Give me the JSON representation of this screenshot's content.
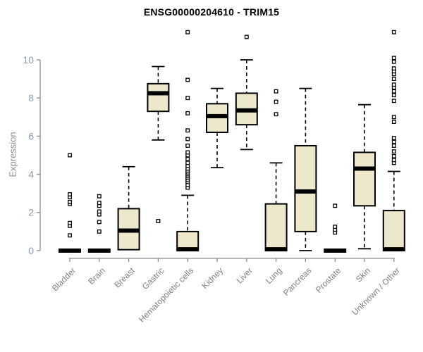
{
  "chart_data": {
    "type": "boxplot",
    "title": "ENSG00000204610 - TRIM15",
    "ylabel": "Expression",
    "xlabel": "",
    "yticks": [
      0,
      2,
      4,
      6,
      8,
      10
    ],
    "ylim": [
      0,
      11.8
    ],
    "grid": false,
    "legend": "none",
    "colors": {
      "box_fill": "#EDE7CC",
      "box_border": "#000000",
      "median": "#000000",
      "whisker": "#000000",
      "outlier_stroke": "#000000",
      "outlier_fill": "#ffffff",
      "axis": "#8a8a8a",
      "ytick_label": "#8b9bac",
      "xtick_label": "#808080",
      "ylabel_color": "#8e8e8e",
      "title_color": "#000000"
    },
    "categories": [
      "Bladder",
      "Brain",
      "Breast",
      "Gastric",
      "Hematopoietic cells",
      "Kidney",
      "Liver",
      "Lung",
      "Pancreas",
      "Prostate",
      "Skin",
      "Unknown / Other"
    ],
    "boxes": [
      {
        "category": "Bladder",
        "low": 0,
        "q1": 0,
        "median": 0,
        "q3": 0,
        "high": 0,
        "outliers": [
          0.8,
          1.3,
          1.45,
          2.45,
          2.55,
          2.8,
          2.95,
          5.0
        ]
      },
      {
        "category": "Brain",
        "low": 0,
        "q1": 0,
        "median": 0,
        "q3": 0,
        "high": 0,
        "outliers": [
          1.0,
          1.5,
          1.9,
          2.05,
          2.35,
          2.5,
          2.85
        ]
      },
      {
        "category": "Breast",
        "low": 0.05,
        "q1": 0.05,
        "median": 1.05,
        "q3": 2.2,
        "high": 4.4,
        "outliers": []
      },
      {
        "category": "Gastric",
        "low": 5.8,
        "q1": 7.3,
        "median": 8.25,
        "q3": 8.75,
        "high": 9.65,
        "outliers": [
          1.55
        ]
      },
      {
        "category": "Hematopoietic cells",
        "low": 0,
        "q1": 0,
        "median": 0.07,
        "q3": 1.0,
        "high": 2.9,
        "outliers": [
          3.3,
          3.45,
          3.6,
          3.7,
          3.8,
          3.9,
          4.0,
          4.1,
          4.2,
          4.3,
          4.45,
          4.6,
          4.8,
          5.0,
          5.15,
          5.5,
          5.85,
          6.3,
          7.2,
          8.0,
          8.95,
          11.45
        ]
      },
      {
        "category": "Kidney",
        "low": 4.35,
        "q1": 6.2,
        "median": 7.05,
        "q3": 7.7,
        "high": 8.5,
        "outliers": []
      },
      {
        "category": "Liver",
        "low": 5.3,
        "q1": 6.6,
        "median": 7.35,
        "q3": 8.25,
        "high": 10.0,
        "outliers": [
          11.2
        ]
      },
      {
        "category": "Lung",
        "low": 0,
        "q1": 0,
        "median": 0.07,
        "q3": 2.45,
        "high": 4.6,
        "outliers": [
          7.15,
          7.8,
          8.35
        ]
      },
      {
        "category": "Pancreas",
        "low": 0,
        "q1": 1.0,
        "median": 3.1,
        "q3": 5.5,
        "high": 8.5,
        "outliers": []
      },
      {
        "category": "Prostate",
        "low": 0,
        "q1": 0,
        "median": 0,
        "q3": 0,
        "high": 0,
        "outliers": [
          0.95,
          1.1,
          1.25,
          2.35
        ]
      },
      {
        "category": "Skin",
        "low": 0.1,
        "q1": 2.35,
        "median": 4.3,
        "q3": 5.15,
        "high": 7.65,
        "outliers": []
      },
      {
        "category": "Unknown / Other",
        "low": 0,
        "q1": 0,
        "median": 0.07,
        "q3": 2.1,
        "high": 4.15,
        "outliers": [
          4.6,
          4.75,
          4.95,
          5.2,
          5.5,
          5.7,
          5.9,
          6.75,
          7.0,
          7.85,
          8.15,
          8.35,
          8.55,
          8.7,
          9.0,
          9.25,
          9.4,
          9.55,
          9.9,
          10.1,
          11.45
        ]
      }
    ]
  }
}
